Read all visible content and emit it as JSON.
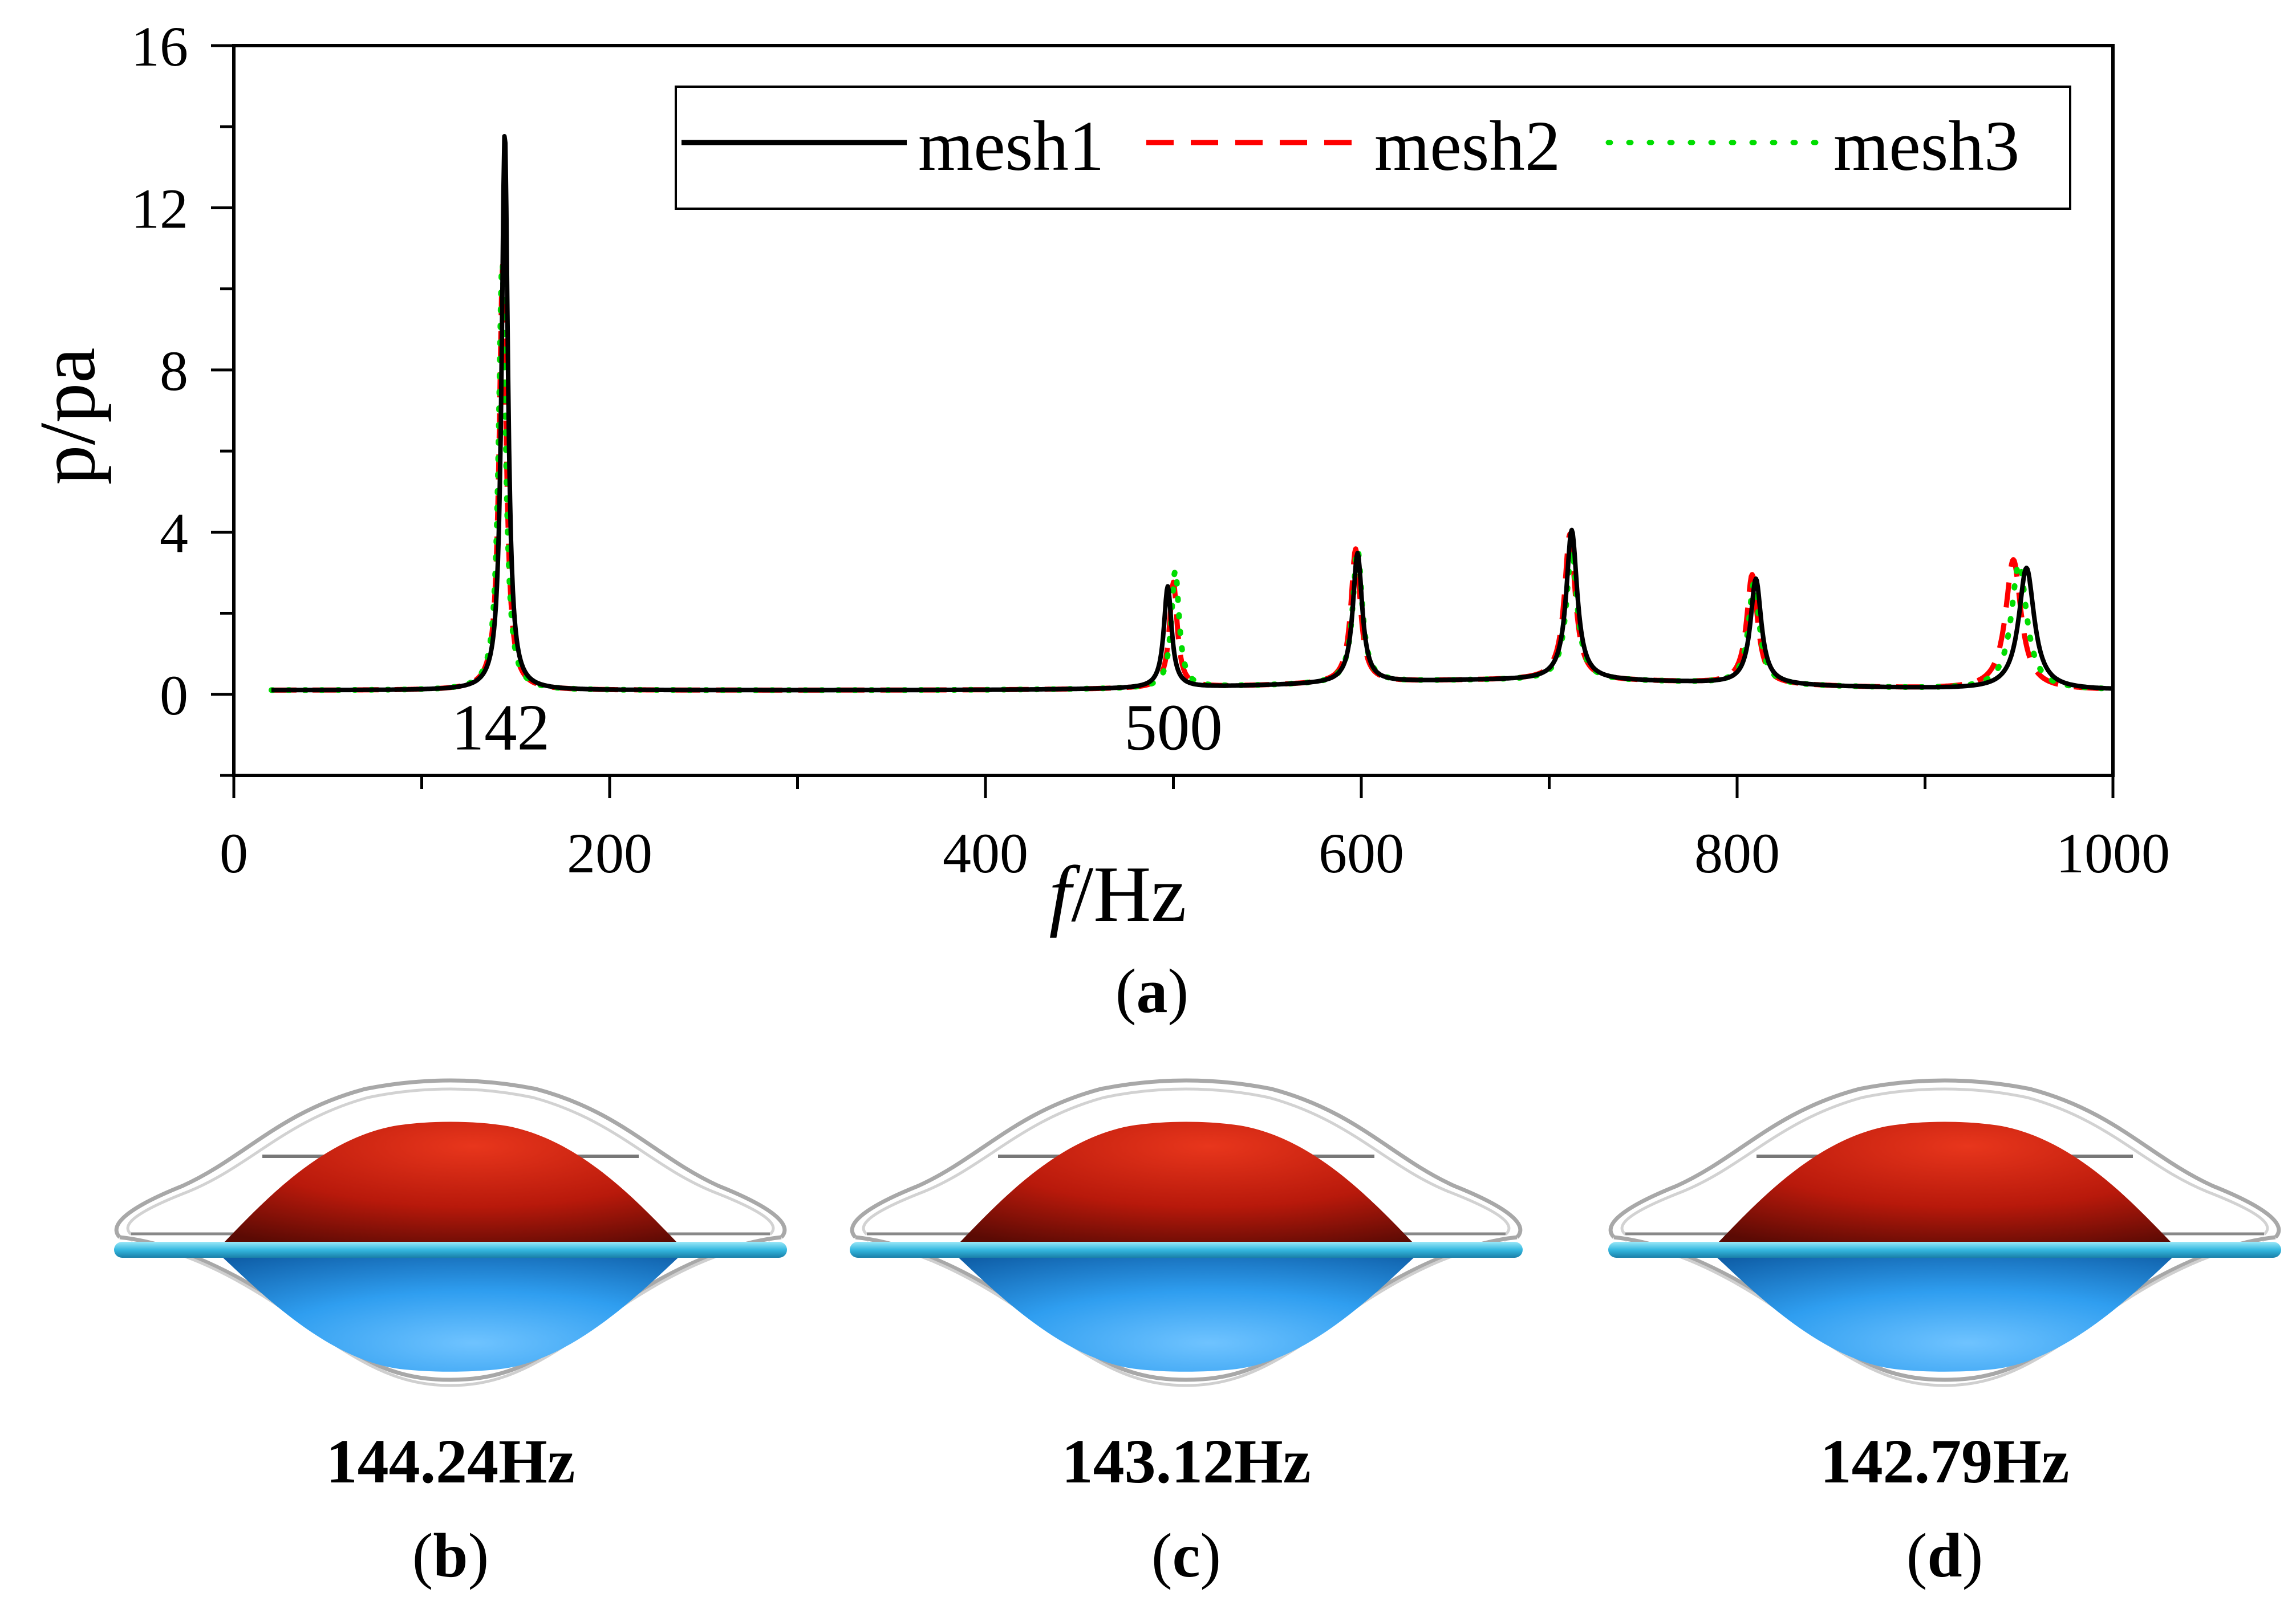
{
  "colors": {
    "mesh1": "#000000",
    "mesh2": "#ff0000",
    "mesh3": "#00dd00",
    "membrane_red": "#c81e0c",
    "membrane_blue": "#3aa8e8",
    "ring": "#40c4e8",
    "outline": "#9a9a9a"
  },
  "chart_data": {
    "type": "line",
    "title": "",
    "xlabel_italic": "f",
    "xlabel_rest": "/Hz",
    "ylabel": "p/pa",
    "xlim": [
      0,
      1000
    ],
    "ylim": [
      -2,
      16
    ],
    "xticks": [
      0,
      200,
      400,
      600,
      800,
      1000
    ],
    "xtick_labels": [
      "0",
      "200",
      "400",
      "600",
      "800",
      "1000"
    ],
    "yticks": [
      0,
      4,
      8,
      12,
      16
    ],
    "ytick_labels": [
      "0",
      "4",
      "8",
      "12",
      "16"
    ],
    "legend_position": "top-right",
    "annotations": [
      {
        "text": "142",
        "x": 142,
        "y": -0.8
      },
      {
        "text": "500",
        "x": 500,
        "y": -0.8
      }
    ],
    "series": [
      {
        "name": "mesh1",
        "style": "solid",
        "baseline": 0.1,
        "x_start": 20,
        "peaks": [
          {
            "f": 144.2,
            "amp": 13.8,
            "w": 4
          },
          {
            "f": 497,
            "amp": 2.5,
            "w": 5
          },
          {
            "f": 598,
            "amp": 3.2,
            "w": 6
          },
          {
            "f": 712,
            "amp": 3.7,
            "w": 7
          },
          {
            "f": 810,
            "amp": 2.6,
            "w": 7
          },
          {
            "f": 954,
            "amp": 3.0,
            "w": 10
          }
        ]
      },
      {
        "name": "mesh2",
        "style": "dashed",
        "baseline": 0.1,
        "x_start": 20,
        "peaks": [
          {
            "f": 143.1,
            "amp": 10.5,
            "w": 4.5
          },
          {
            "f": 500,
            "amp": 2.6,
            "w": 5
          },
          {
            "f": 597,
            "amp": 3.3,
            "w": 6
          },
          {
            "f": 711,
            "amp": 3.6,
            "w": 7
          },
          {
            "f": 808,
            "amp": 2.7,
            "w": 7
          },
          {
            "f": 947,
            "amp": 3.2,
            "w": 10
          }
        ]
      },
      {
        "name": "mesh3",
        "style": "dotted",
        "baseline": 0.1,
        "x_start": 20,
        "peaks": [
          {
            "f": 142.8,
            "amp": 10.6,
            "w": 4.5
          },
          {
            "f": 501,
            "amp": 2.9,
            "w": 5
          },
          {
            "f": 598,
            "amp": 3.3,
            "w": 6
          },
          {
            "f": 712,
            "amp": 3.2,
            "w": 7
          },
          {
            "f": 809,
            "amp": 2.5,
            "w": 7
          },
          {
            "f": 950,
            "amp": 3.1,
            "w": 10
          }
        ]
      }
    ]
  },
  "captions": {
    "a": "a",
    "b": "b",
    "c": "c",
    "d": "d"
  },
  "modes": [
    {
      "freq_label": "144.24Hz"
    },
    {
      "freq_label": "143.12Hz"
    },
    {
      "freq_label": "142.79Hz"
    }
  ]
}
